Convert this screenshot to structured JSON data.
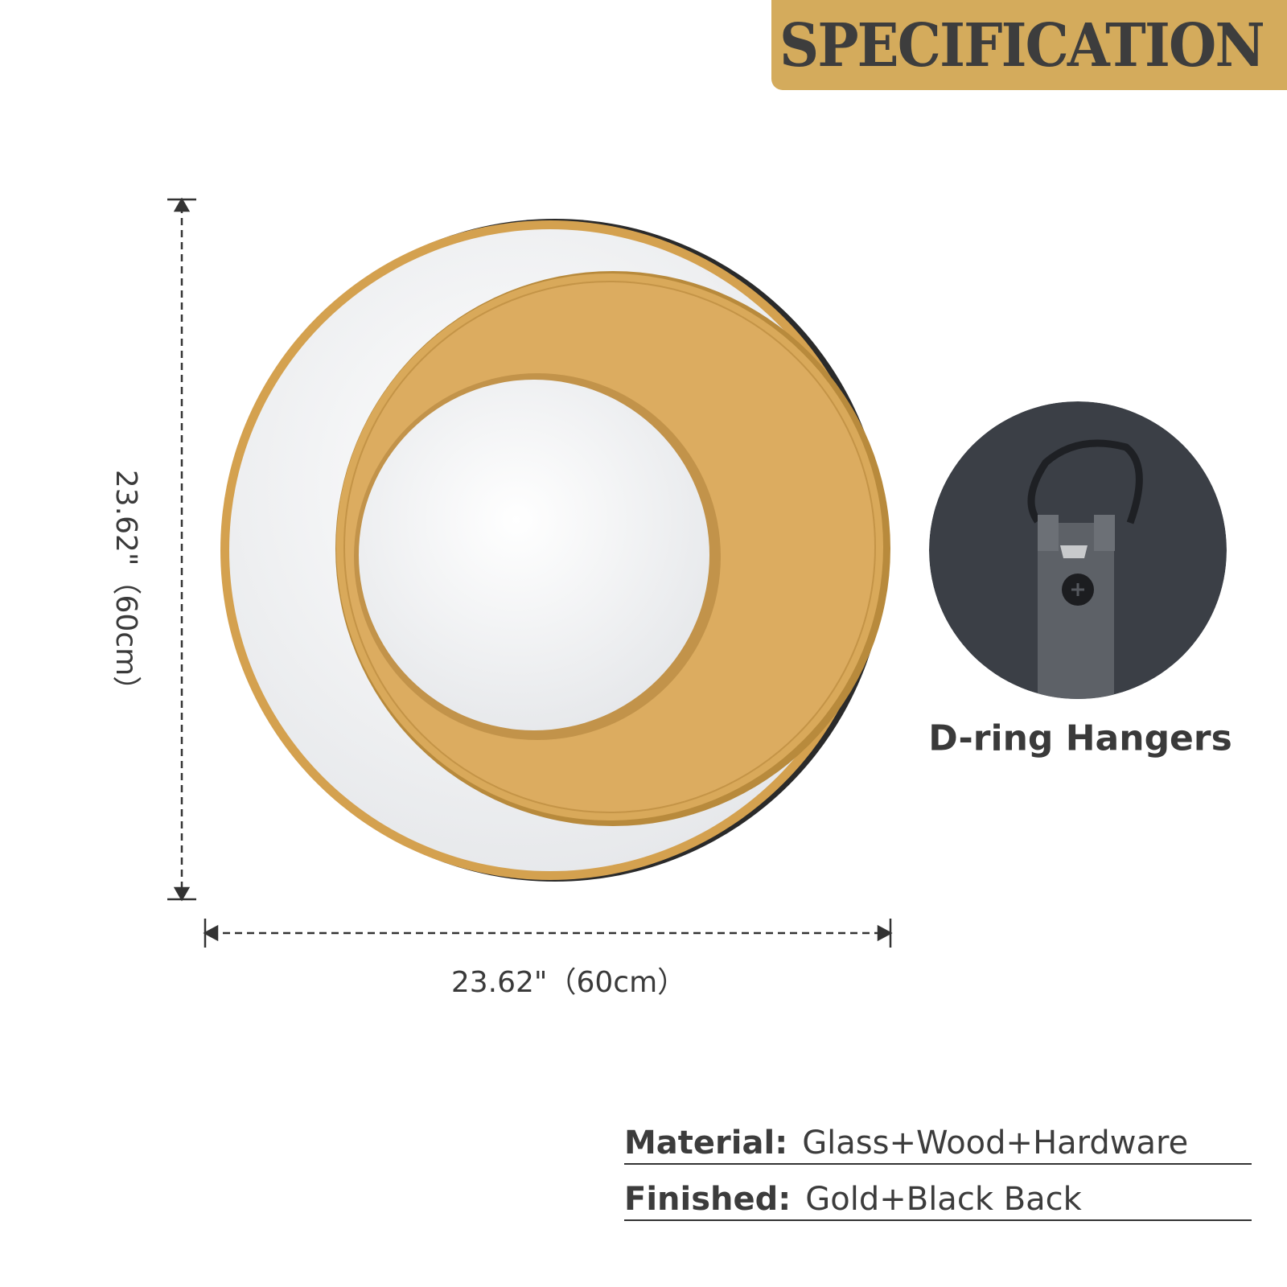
{
  "header": {
    "title": "SPECIFICATION",
    "background": "#d4ab5c"
  },
  "dimensions": {
    "height_label": "23.62\"（60cm）",
    "width_label": "23.62\"（60cm）"
  },
  "product": {
    "name": "round mirror",
    "frame_color": "#d4a14f",
    "mirror_color": "#eef0f2"
  },
  "hanger": {
    "label": "D-ring Hangers",
    "icon": "d-ring-hanger-photo"
  },
  "specs": [
    {
      "label": "Material:",
      "value": "Glass+Wood+Hardware"
    },
    {
      "label": "Finished:",
      "value": "Gold+Black Back"
    }
  ]
}
